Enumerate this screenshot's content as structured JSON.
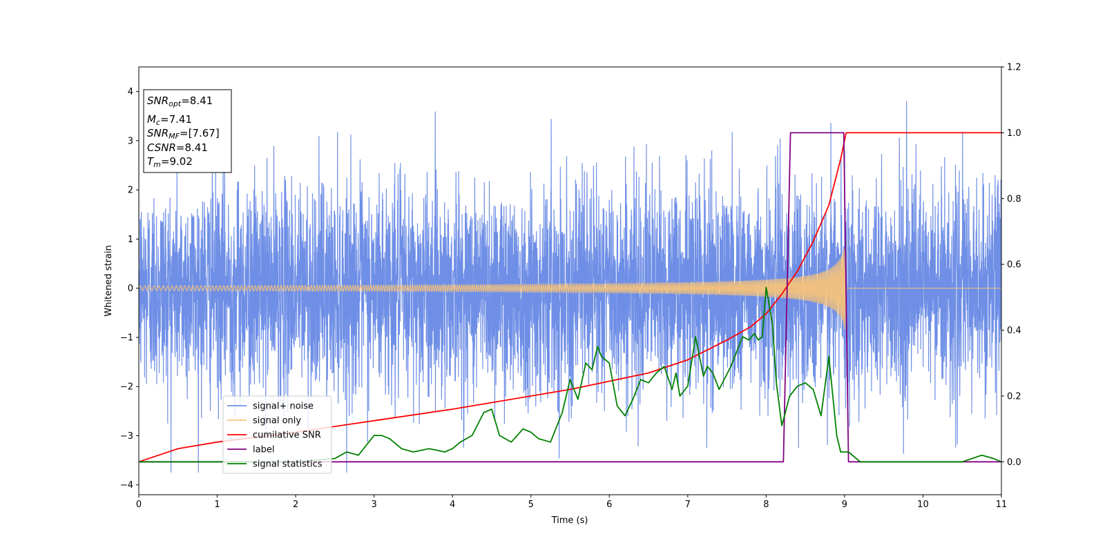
{
  "chart_data": {
    "type": "line",
    "xlabel": "Time (s)",
    "ylabel": "Whitened strain",
    "xlim": [
      0,
      11
    ],
    "ylim": [
      -4.2,
      4.5
    ],
    "y2lim": [
      -0.1,
      1.2
    ],
    "grid": false,
    "legend_position": "lower-left",
    "x_ticks": [
      "0",
      "1",
      "2",
      "3",
      "4",
      "5",
      "6",
      "7",
      "8",
      "9",
      "10",
      "11"
    ],
    "y_ticks": [
      "−4",
      "−3",
      "−2",
      "−1",
      "0",
      "1",
      "2",
      "3",
      "4"
    ],
    "y2_ticks": [
      "0.0",
      "0.2",
      "0.4",
      "0.6",
      "0.8",
      "1.0",
      "1.2"
    ],
    "info_box": {
      "snr_opt_main": "SNR",
      "snr_opt_sub": "opt",
      "snr_opt_val": "=8.41",
      "mc_main": "M",
      "mc_sub": "c",
      "mc_val": "=7.41",
      "snr_mf_main": "SNR",
      "snr_mf_sub": "MF",
      "snr_mf_val": "=[7.67]",
      "csnr_main": "CSNR",
      "csnr_val": "=8.41",
      "tm_main": "T",
      "tm_sub": "m",
      "tm_val": "=9.02"
    },
    "series": [
      {
        "name": "signal+ noise",
        "color": "#6f8fe6",
        "axis": "left",
        "kind": "noise",
        "std": 1.05,
        "peak_max": 4.2,
        "peak_min": -3.75,
        "end_time": 11
      },
      {
        "name": "signal only",
        "color": "#f4c27a",
        "axis": "left",
        "kind": "chirp",
        "merger_time": 9.02,
        "final_amplitude": 1.1
      },
      {
        "name": "cumilative SNR",
        "color": "#ff0000",
        "axis": "right",
        "x": [
          0,
          0.5,
          1,
          2,
          3,
          4,
          5,
          5.5,
          6,
          6.5,
          7,
          7.5,
          7.8,
          8,
          8.2,
          8.4,
          8.6,
          8.8,
          8.95,
          9.02,
          11
        ],
        "y": [
          0.0,
          0.04,
          0.06,
          0.09,
          0.125,
          0.16,
          0.2,
          0.22,
          0.245,
          0.27,
          0.31,
          0.37,
          0.41,
          0.45,
          0.51,
          0.58,
          0.67,
          0.78,
          0.92,
          1.0,
          1.0
        ]
      },
      {
        "name": "label",
        "color": "#800080",
        "axis": "right",
        "x": [
          0,
          8.22,
          8.31,
          8.99,
          9.05,
          11
        ],
        "y": [
          0,
          0,
          1,
          1,
          0,
          0
        ]
      },
      {
        "name": "signal statistics",
        "color": "#008000",
        "axis": "right",
        "x": [
          0,
          1,
          2,
          2.5,
          2.65,
          2.8,
          2.9,
          3.0,
          3.1,
          3.2,
          3.35,
          3.5,
          3.7,
          3.9,
          4.0,
          4.1,
          4.25,
          4.4,
          4.5,
          4.6,
          4.75,
          4.9,
          5.0,
          5.1,
          5.25,
          5.4,
          5.5,
          5.6,
          5.7,
          5.78,
          5.85,
          5.9,
          6.0,
          6.1,
          6.2,
          6.3,
          6.4,
          6.5,
          6.6,
          6.7,
          6.8,
          6.85,
          6.9,
          7.0,
          7.1,
          7.2,
          7.25,
          7.32,
          7.4,
          7.55,
          7.7,
          7.78,
          7.85,
          7.9,
          7.95,
          8.0,
          8.08,
          8.13,
          8.2,
          8.3,
          8.4,
          8.5,
          8.6,
          8.7,
          8.8,
          8.9,
          8.95,
          9.05,
          9.2,
          9.5,
          10,
          10.5,
          10.75,
          10.9,
          11
        ],
        "y": [
          0.0,
          0.0,
          0.0,
          0.01,
          0.03,
          0.02,
          0.05,
          0.08,
          0.08,
          0.07,
          0.04,
          0.03,
          0.04,
          0.03,
          0.04,
          0.06,
          0.08,
          0.15,
          0.16,
          0.08,
          0.06,
          0.1,
          0.09,
          0.07,
          0.06,
          0.15,
          0.25,
          0.19,
          0.3,
          0.28,
          0.35,
          0.32,
          0.3,
          0.17,
          0.14,
          0.19,
          0.25,
          0.24,
          0.27,
          0.29,
          0.22,
          0.27,
          0.2,
          0.23,
          0.38,
          0.26,
          0.29,
          0.27,
          0.22,
          0.29,
          0.38,
          0.37,
          0.39,
          0.37,
          0.38,
          0.53,
          0.42,
          0.24,
          0.11,
          0.2,
          0.23,
          0.24,
          0.22,
          0.14,
          0.32,
          0.08,
          0.03,
          0.03,
          0.0,
          0.0,
          0.0,
          0.0,
          0.02,
          0.01,
          0.0
        ]
      }
    ]
  }
}
